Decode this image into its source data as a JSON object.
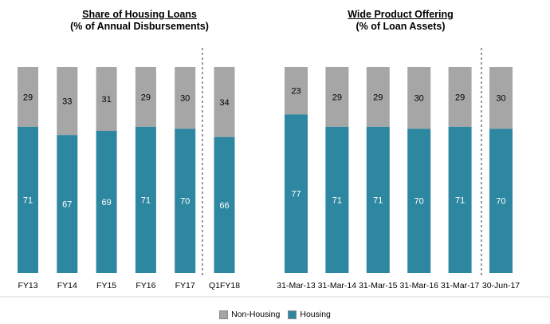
{
  "colors": {
    "non_housing": "#a6a6a6",
    "housing": "#2e87a0"
  },
  "legend": {
    "non_housing": "Non-Housing",
    "housing": "Housing"
  },
  "chart_data": [
    {
      "type": "bar",
      "stacked": true,
      "title": "Share of Housing Loans",
      "subtitle": "(% of Annual Disbursements)",
      "categories": [
        "FY13",
        "FY14",
        "FY15",
        "FY16",
        "FY17",
        "Q1FY18"
      ],
      "series": [
        {
          "name": "Housing",
          "values": [
            71,
            67,
            69,
            71,
            70,
            66
          ]
        },
        {
          "name": "Non-Housing",
          "values": [
            29,
            33,
            31,
            29,
            30,
            34
          ]
        }
      ],
      "ylim": [
        0,
        100
      ],
      "divider_after_index": 4
    },
    {
      "type": "bar",
      "stacked": true,
      "title": "Wide Product Offering",
      "subtitle": "(% of Loan Assets)",
      "categories": [
        "31-Mar-13",
        "31-Mar-14",
        "31-Mar-15",
        "31-Mar-16",
        "31-Mar-17",
        "30-Jun-17"
      ],
      "series": [
        {
          "name": "Housing",
          "values": [
            77,
            71,
            71,
            70,
            71,
            70
          ]
        },
        {
          "name": "Non-Housing",
          "values": [
            23,
            29,
            29,
            30,
            29,
            30
          ]
        }
      ],
      "ylim": [
        0,
        100
      ],
      "divider_after_index": 4
    }
  ]
}
